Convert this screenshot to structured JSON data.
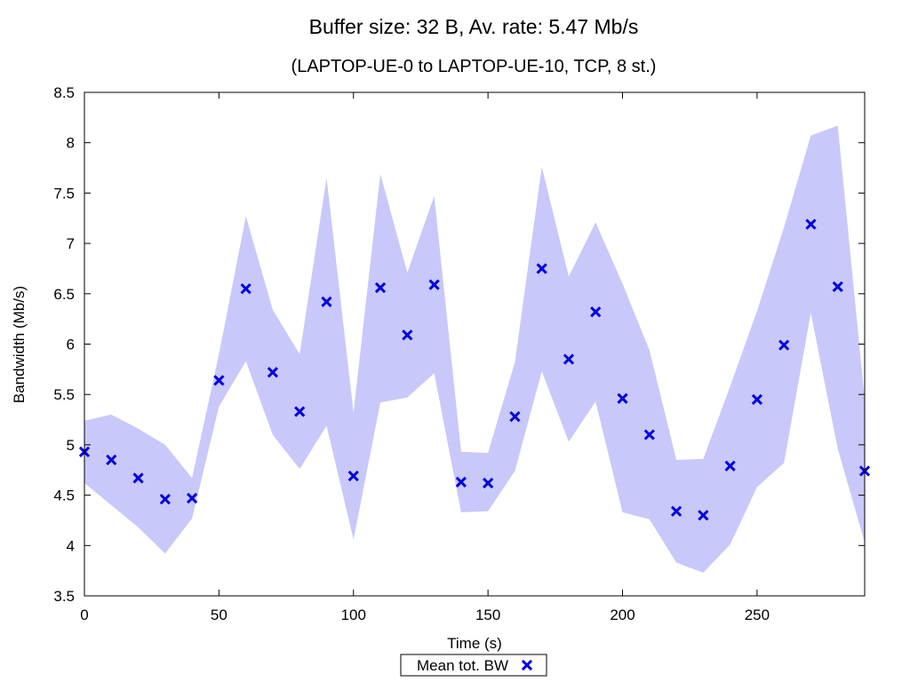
{
  "chart_data": {
    "type": "scatter",
    "title": "Buffer size: 32 B, Av. rate: 5.47 Mb/s",
    "subtitle": "(LAPTOP-UE-0 to LAPTOP-UE-10, TCP, 8 st.)",
    "xlabel": "Time (s)",
    "ylabel": "Bandwidth (Mb/s)",
    "xlim": [
      0,
      290
    ],
    "ylim": [
      3.5,
      8.5
    ],
    "x_ticks": [
      0,
      50,
      100,
      150,
      200,
      250
    ],
    "x_tick_labels": [
      "0",
      "50",
      "100",
      "150",
      "200",
      "250"
    ],
    "y_ticks": [
      3.5,
      4,
      4.5,
      5,
      5.5,
      6,
      6.5,
      7,
      7.5,
      8,
      8.5
    ],
    "y_tick_labels": [
      "3.5",
      "4",
      "4.5",
      "5",
      "5.5",
      "6",
      "6.5",
      "7",
      "7.5",
      "8",
      "8.5"
    ],
    "grid": false,
    "legend_position": "bottom-center",
    "band_color": "#c8c8fa",
    "series": [
      {
        "name": "Mean tot. BW",
        "marker": "x",
        "color": "#0000e0",
        "x": [
          0,
          10,
          20,
          30,
          40,
          50,
          60,
          70,
          80,
          90,
          100,
          110,
          120,
          130,
          140,
          150,
          160,
          170,
          180,
          190,
          200,
          210,
          220,
          230,
          240,
          250,
          260,
          270,
          280,
          290
        ],
        "y": [
          4.93,
          4.85,
          4.67,
          4.46,
          4.47,
          5.64,
          6.55,
          5.72,
          5.33,
          6.42,
          4.69,
          6.56,
          6.09,
          6.59,
          4.63,
          4.62,
          5.28,
          6.75,
          5.85,
          6.32,
          5.46,
          5.1,
          4.34,
          4.3,
          4.79,
          5.45,
          5.99,
          7.19,
          6.57,
          4.74
        ],
        "upper": [
          5.24,
          5.3,
          5.16,
          5.0,
          4.67,
          5.9,
          7.27,
          6.34,
          5.9,
          7.65,
          5.32,
          7.69,
          6.71,
          7.47,
          4.93,
          4.92,
          5.82,
          7.76,
          6.67,
          7.21,
          6.6,
          5.94,
          4.85,
          4.86,
          5.58,
          6.33,
          7.16,
          8.07,
          8.17,
          5.45
        ],
        "lower": [
          4.62,
          4.4,
          4.18,
          3.92,
          4.27,
          5.38,
          5.83,
          5.1,
          4.76,
          5.19,
          4.06,
          5.42,
          5.47,
          5.71,
          4.33,
          4.34,
          4.74,
          5.73,
          5.03,
          5.43,
          4.33,
          4.26,
          3.83,
          3.73,
          4.01,
          4.58,
          4.82,
          6.31,
          4.96,
          4.03
        ]
      }
    ]
  }
}
